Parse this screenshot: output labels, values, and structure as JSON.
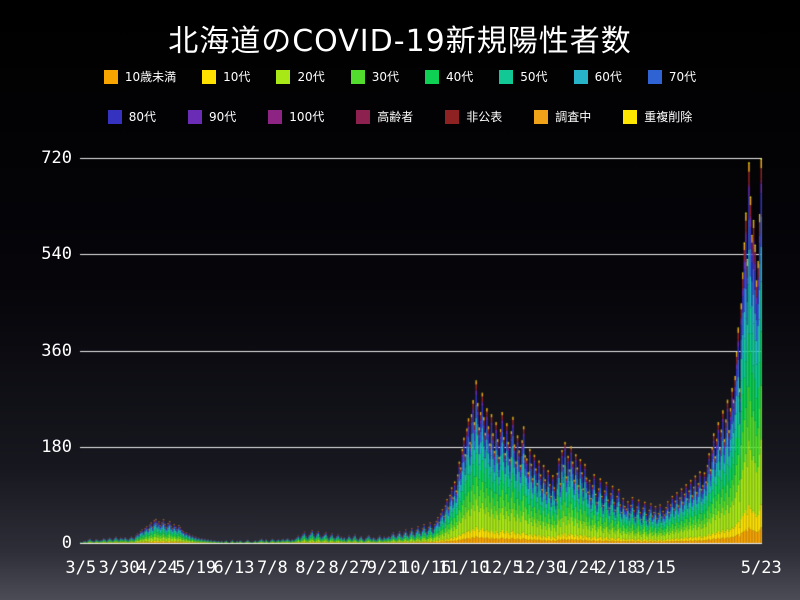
{
  "chart_data": {
    "type": "bar",
    "stacked": true,
    "title": "北海道のCOVID-19新規陽性者数",
    "xlabel": "",
    "ylabel": "",
    "ylim": [
      0,
      720
    ],
    "yticks": [
      0,
      180,
      360,
      540,
      720
    ],
    "grid": true,
    "legend_position": "top",
    "series": [
      {
        "label": "10歳未満",
        "color": "#f8a500",
        "fraction": 0.04
      },
      {
        "label": "10代",
        "color": "#ffe100",
        "fraction": 0.06
      },
      {
        "label": "20代",
        "color": "#a8e816",
        "fraction": 0.17
      },
      {
        "label": "30代",
        "color": "#52dd2e",
        "fraction": 0.14
      },
      {
        "label": "40代",
        "color": "#0ed052",
        "fraction": 0.14
      },
      {
        "label": "50代",
        "color": "#12c996",
        "fraction": 0.13
      },
      {
        "label": "60代",
        "color": "#28b4c8",
        "fraction": 0.09
      },
      {
        "label": "70代",
        "color": "#2f63d4",
        "fraction": 0.08
      },
      {
        "label": "80代",
        "color": "#3432be",
        "fraction": 0.06
      },
      {
        "label": "90代",
        "color": "#6a2cb4",
        "fraction": 0.025
      },
      {
        "label": "100代",
        "color": "#8d2383",
        "fraction": 0.003
      },
      {
        "label": "高齢者",
        "color": "#8c2150",
        "fraction": 0.007
      },
      {
        "label": "非公表",
        "color": "#8e2222",
        "fraction": 0.03
      },
      {
        "label": "調査中",
        "color": "#f0a219",
        "fraction": 0.02
      },
      {
        "label": "重複削除",
        "color": "#ffe600",
        "fraction": 0.005
      }
    ],
    "xticks": [
      {
        "day": 0,
        "label": "3/5"
      },
      {
        "day": 25,
        "label": "3/30"
      },
      {
        "day": 50,
        "label": "4/24"
      },
      {
        "day": 75,
        "label": "5/19"
      },
      {
        "day": 100,
        "label": "6/13"
      },
      {
        "day": 125,
        "label": "7/8"
      },
      {
        "day": 150,
        "label": "8/2"
      },
      {
        "day": 175,
        "label": "8/27"
      },
      {
        "day": 200,
        "label": "9/21"
      },
      {
        "day": 225,
        "label": "10/16"
      },
      {
        "day": 250,
        "label": "11/10"
      },
      {
        "day": 275,
        "label": "12/5"
      },
      {
        "day": 300,
        "label": "12/30"
      },
      {
        "day": 325,
        "label": "1/24"
      },
      {
        "day": 350,
        "label": "2/18"
      },
      {
        "day": 375,
        "label": "3/15"
      },
      {
        "day": 444,
        "label": "5/23"
      }
    ],
    "x_start_date": "3/5",
    "x_end_date": "5/23",
    "totals": [
      2,
      1,
      3,
      4,
      2,
      6,
      8,
      5,
      4,
      3,
      7,
      6,
      4,
      5,
      6,
      9,
      7,
      4,
      8,
      10,
      7,
      5,
      9,
      12,
      8,
      6,
      10,
      9,
      7,
      11,
      8,
      6,
      9,
      12,
      10,
      8,
      14,
      18,
      16,
      22,
      25,
      20,
      28,
      31,
      26,
      34,
      38,
      30,
      42,
      45,
      36,
      40,
      33,
      38,
      44,
      35,
      29,
      37,
      41,
      32,
      28,
      35,
      30,
      26,
      33,
      29,
      24,
      22,
      18,
      20,
      15,
      17,
      12,
      14,
      10,
      12,
      8,
      10,
      7,
      9,
      6,
      8,
      5,
      7,
      4,
      6,
      3,
      5,
      4,
      3,
      4,
      2,
      4,
      1,
      3,
      5,
      2,
      0,
      3,
      6,
      2,
      1,
      4,
      2,
      5,
      3,
      1,
      2,
      4,
      6,
      3,
      2,
      1,
      3,
      5,
      2,
      4,
      6,
      8,
      5,
      3,
      7,
      4,
      2,
      5,
      8,
      6,
      3,
      5,
      7,
      4,
      6,
      8,
      5,
      7,
      9,
      6,
      4,
      7,
      5,
      8,
      10,
      14,
      8,
      12,
      17,
      21,
      13,
      9,
      15,
      19,
      24,
      16,
      11,
      18,
      22,
      14,
      10,
      13,
      17,
      20,
      12,
      8,
      14,
      18,
      11,
      9,
      13,
      16,
      10,
      12,
      8,
      11,
      6,
      9,
      14,
      10,
      7,
      12,
      16,
      9,
      6,
      10,
      13,
      8,
      5,
      9,
      12,
      15,
      10,
      7,
      11,
      8,
      6,
      10,
      14,
      9,
      7,
      12,
      9,
      11,
      13,
      10,
      16,
      20,
      14,
      11,
      17,
      22,
      15,
      12,
      19,
      25,
      17,
      13,
      21,
      28,
      19,
      15,
      24,
      31,
      22,
      17,
      27,
      35,
      25,
      20,
      30,
      38,
      28,
      23,
      35,
      41,
      48,
      39,
      55,
      63,
      50,
      70,
      82,
      66,
      90,
      104,
      85,
      115,
      98,
      128,
      152,
      141,
      176,
      197,
      166,
      214,
      233,
      189,
      241,
      267,
      226,
      304,
      262,
      216,
      245,
      281,
      235,
      206,
      252,
      218,
      186,
      241,
      205,
      172,
      226,
      194,
      161,
      213,
      245,
      198,
      168,
      224,
      189,
      157,
      209,
      236,
      184,
      152,
      201,
      173,
      146,
      192,
      218,
      164,
      158,
      132,
      176,
      148,
      121,
      165,
      139,
      112,
      154,
      128,
      101,
      146,
      119,
      95,
      136,
      110,
      88,
      127,
      104,
      82,
      131,
      158,
      112,
      174,
      146,
      189,
      124,
      163,
      137,
      181,
      152,
      118,
      166,
      141,
      108,
      157,
      132,
      102,
      148,
      122,
      96,
      118,
      84,
      108,
      129,
      92,
      76,
      102,
      121,
      88,
      71,
      98,
      114,
      81,
      66,
      93,
      107,
      76,
      62,
      88,
      101,
      72,
      58,
      84,
      69,
      64,
      78,
      55,
      71,
      86,
      61,
      48,
      68,
      81,
      58,
      45,
      66,
      77,
      54,
      42,
      62,
      74,
      51,
      58,
      69,
      47,
      56,
      72,
      49,
      60,
      53,
      67,
      78,
      58,
      72,
      88,
      64,
      79,
      95,
      70,
      85,
      102,
      76,
      92,
      110,
      83,
      98,
      118,
      89,
      105,
      126,
      95,
      112,
      134,
      101,
      108,
      132,
      115,
      146,
      168,
      138,
      179,
      205,
      162,
      195,
      226,
      178,
      212,
      248,
      194,
      231,
      268,
      211,
      252,
      290,
      268,
      312,
      357,
      403,
      289,
      448,
      506,
      562,
      618,
      531,
      712,
      648,
      576,
      604,
      558,
      491,
      527,
      615,
      719
    ]
  }
}
